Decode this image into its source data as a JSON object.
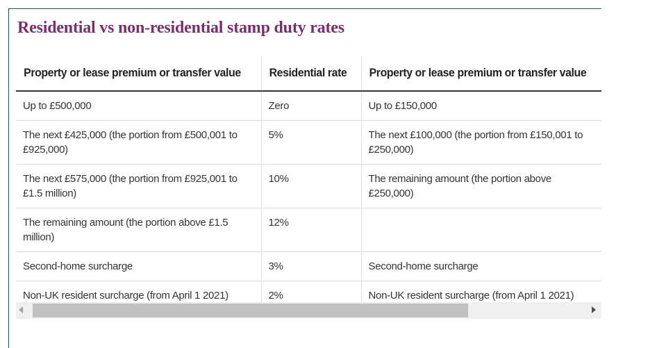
{
  "title": "Residential vs non-residential stamp duty rates",
  "colors": {
    "title": "#7b2d6f",
    "header_rule": "#333333",
    "row_rule": "#dddddd",
    "text": "#333333",
    "frame": "#1f4e4e"
  },
  "table": {
    "headers": [
      "Property or lease premium or transfer value",
      "Residential rate",
      "Property or lease premium or transfer value"
    ],
    "rows": [
      [
        "Up to £500,000",
        "Zero",
        "Up to £150,000"
      ],
      [
        "The next £425,000 (the portion from £500,001 to £925,000)",
        "5%",
        "The next £100,000 (the portion from £150,001 to £250,000)"
      ],
      [
        "The next £575,000 (the portion from £925,001 to £1.5 million)",
        "10%",
        "The remaining amount (the portion above £250,000)"
      ],
      [
        "The remaining amount (the portion above £1.5 million)",
        "12%",
        ""
      ],
      [
        "Second-home surcharge",
        "3%",
        "Second-home surcharge"
      ],
      [
        "Non-UK resident surcharge (from April 1 2021)",
        "2%",
        "Non-UK resident surcharge (from April 1 2021)"
      ]
    ]
  },
  "scrollbar": {
    "left_icon": "scroll-left-arrow-icon",
    "right_icon": "scroll-right-arrow-icon"
  }
}
